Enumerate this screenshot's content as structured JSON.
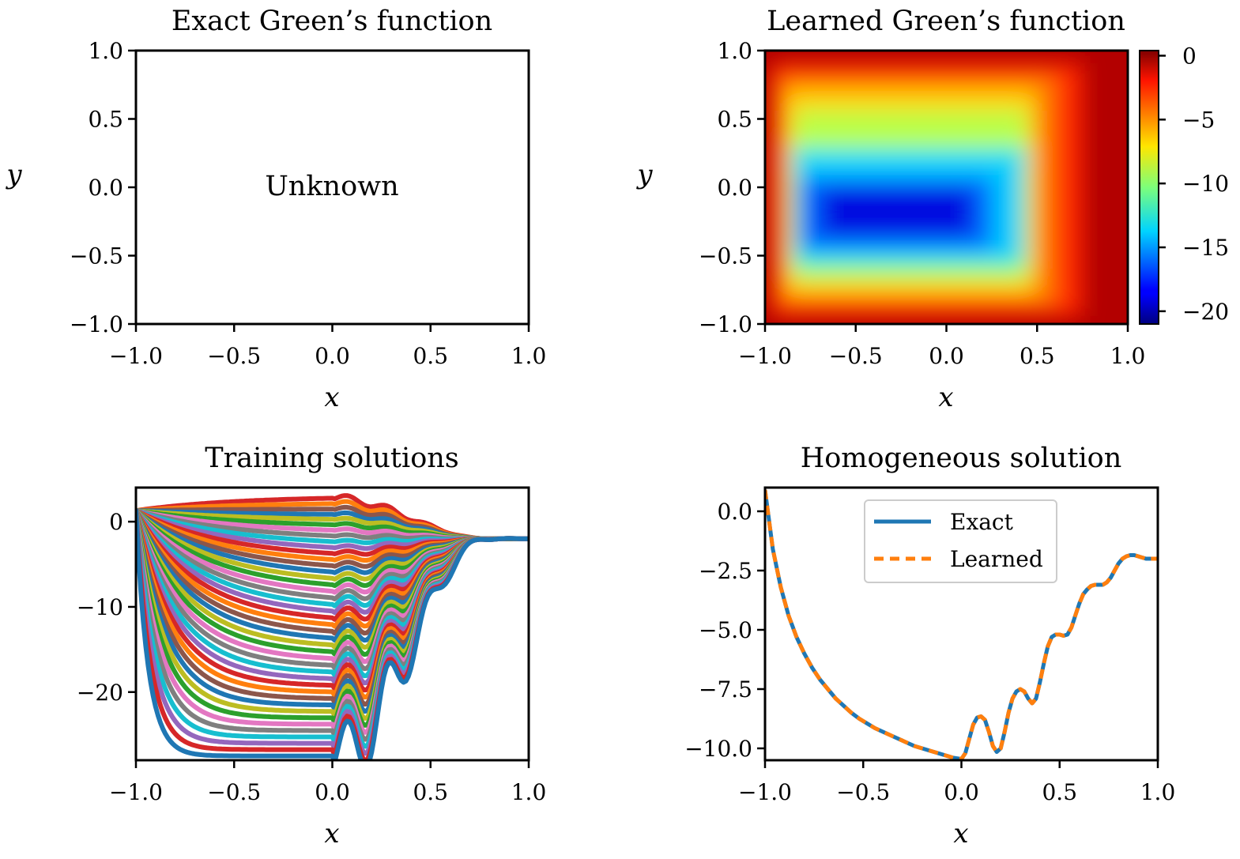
{
  "chart_data": [
    {
      "id": "exact",
      "type": "heatmap",
      "title": "Exact Green’s function",
      "xlabel": "x",
      "ylabel": "y",
      "xlim": [
        -1.0,
        1.0
      ],
      "ylim": [
        -1.0,
        1.0
      ],
      "xticks": [
        "−1.0",
        "−0.5",
        "0.0",
        "0.5",
        "1.0"
      ],
      "yticks": [
        "1.0",
        "0.5",
        "0.0",
        "−0.5",
        "−1.0"
      ],
      "annotation": "Unknown"
    },
    {
      "id": "learned",
      "type": "heatmap",
      "title": "Learned Green’s function",
      "xlabel": "x",
      "ylabel": "y",
      "xlim": [
        -1.0,
        1.0
      ],
      "ylim": [
        -1.0,
        1.0
      ],
      "xticks": [
        "−1.0",
        "−0.5",
        "0.0",
        "0.5",
        "1.0"
      ],
      "yticks": [
        "1.0",
        "0.5",
        "0.0",
        "−0.5",
        "−1.0"
      ],
      "colorbar": {
        "colormap": "jet",
        "range": [
          -21.0,
          0.4
        ],
        "ticks": [
          0,
          -5,
          -10,
          -15,
          -20
        ],
        "tick_labels": [
          "0",
          "−5",
          "−10",
          "−15",
          "−20"
        ]
      }
    },
    {
      "id": "training",
      "type": "line",
      "title": "Training solutions",
      "xlabel": "x",
      "ylabel": "",
      "xlim": [
        -1.0,
        1.0
      ],
      "ylim": [
        -28.0,
        4.0
      ],
      "xticks": [
        "−1.0",
        "−0.5",
        "0.0",
        "0.5",
        "1.0"
      ],
      "yticks": [
        "0",
        "−10",
        "−20"
      ],
      "ytick_values": [
        0,
        -10,
        -20
      ],
      "series_colors": [
        "#d62728",
        "#ff7f0e",
        "#8c564b",
        "#1f77b4",
        "#bcbd22",
        "#2ca02c",
        "#e377c2",
        "#7f7f7f",
        "#17becf",
        "#9467bd"
      ],
      "bottom_series_color": "#1f77b4",
      "series_count": 42,
      "start_value": 1.3,
      "end_value": -2.0
    },
    {
      "id": "homogeneous",
      "type": "line",
      "title": "Homogeneous solution",
      "xlabel": "x",
      "ylabel": "",
      "xlim": [
        -1.0,
        1.0
      ],
      "ylim": [
        -10.5,
        1.0
      ],
      "xticks": [
        "−1.0",
        "−0.5",
        "0.0",
        "0.5",
        "1.0"
      ],
      "yticks": [
        "0.0",
        "−2.5",
        "−5.0",
        "−7.5",
        "−10.0"
      ],
      "ytick_values": [
        0.0,
        -2.5,
        -5.0,
        -7.5,
        -10.0
      ],
      "series": [
        {
          "name": "Exact",
          "color": "#1f77b4",
          "style": "solid"
        },
        {
          "name": "Learned",
          "color": "#ff7f0e",
          "style": "dashed"
        }
      ],
      "x": [
        -1.0,
        -0.96,
        -0.92,
        -0.88,
        -0.84,
        -0.8,
        -0.76,
        -0.72,
        -0.68,
        -0.64,
        -0.6,
        -0.56,
        -0.52,
        -0.48,
        -0.44,
        -0.4,
        -0.36,
        -0.32,
        -0.28,
        -0.24,
        -0.2,
        -0.16,
        -0.12,
        -0.08,
        -0.04,
        0.0,
        0.02,
        0.04,
        0.06,
        0.08,
        0.1,
        0.12,
        0.14,
        0.16,
        0.18,
        0.2,
        0.22,
        0.24,
        0.26,
        0.28,
        0.3,
        0.32,
        0.34,
        0.36,
        0.38,
        0.4,
        0.42,
        0.44,
        0.46,
        0.48,
        0.5,
        0.52,
        0.54,
        0.56,
        0.58,
        0.6,
        0.62,
        0.64,
        0.66,
        0.68,
        0.7,
        0.72,
        0.74,
        0.76,
        0.78,
        0.8,
        0.82,
        0.84,
        0.86,
        0.88,
        0.9,
        0.92,
        0.94,
        0.96,
        0.98,
        1.0
      ],
      "values": [
        0.9,
        -1.6,
        -3.2,
        -4.4,
        -5.3,
        -6.0,
        -6.6,
        -7.1,
        -7.5,
        -7.9,
        -8.2,
        -8.5,
        -8.75,
        -8.95,
        -9.15,
        -9.3,
        -9.45,
        -9.6,
        -9.75,
        -9.9,
        -10.0,
        -10.1,
        -10.2,
        -10.3,
        -10.4,
        -10.45,
        -10.2,
        -9.6,
        -9.0,
        -8.7,
        -8.65,
        -8.8,
        -9.3,
        -9.9,
        -10.15,
        -10.0,
        -9.3,
        -8.5,
        -7.9,
        -7.6,
        -7.5,
        -7.6,
        -7.9,
        -8.1,
        -7.9,
        -7.2,
        -6.4,
        -5.7,
        -5.3,
        -5.2,
        -5.2,
        -5.25,
        -5.2,
        -4.9,
        -4.4,
        -3.9,
        -3.5,
        -3.3,
        -3.15,
        -3.1,
        -3.1,
        -3.1,
        -3.0,
        -2.8,
        -2.5,
        -2.2,
        -2.0,
        -1.9,
        -1.85,
        -1.85,
        -1.9,
        -1.95,
        -2.0,
        -2.0,
        -2.0,
        -2.0
      ]
    }
  ]
}
